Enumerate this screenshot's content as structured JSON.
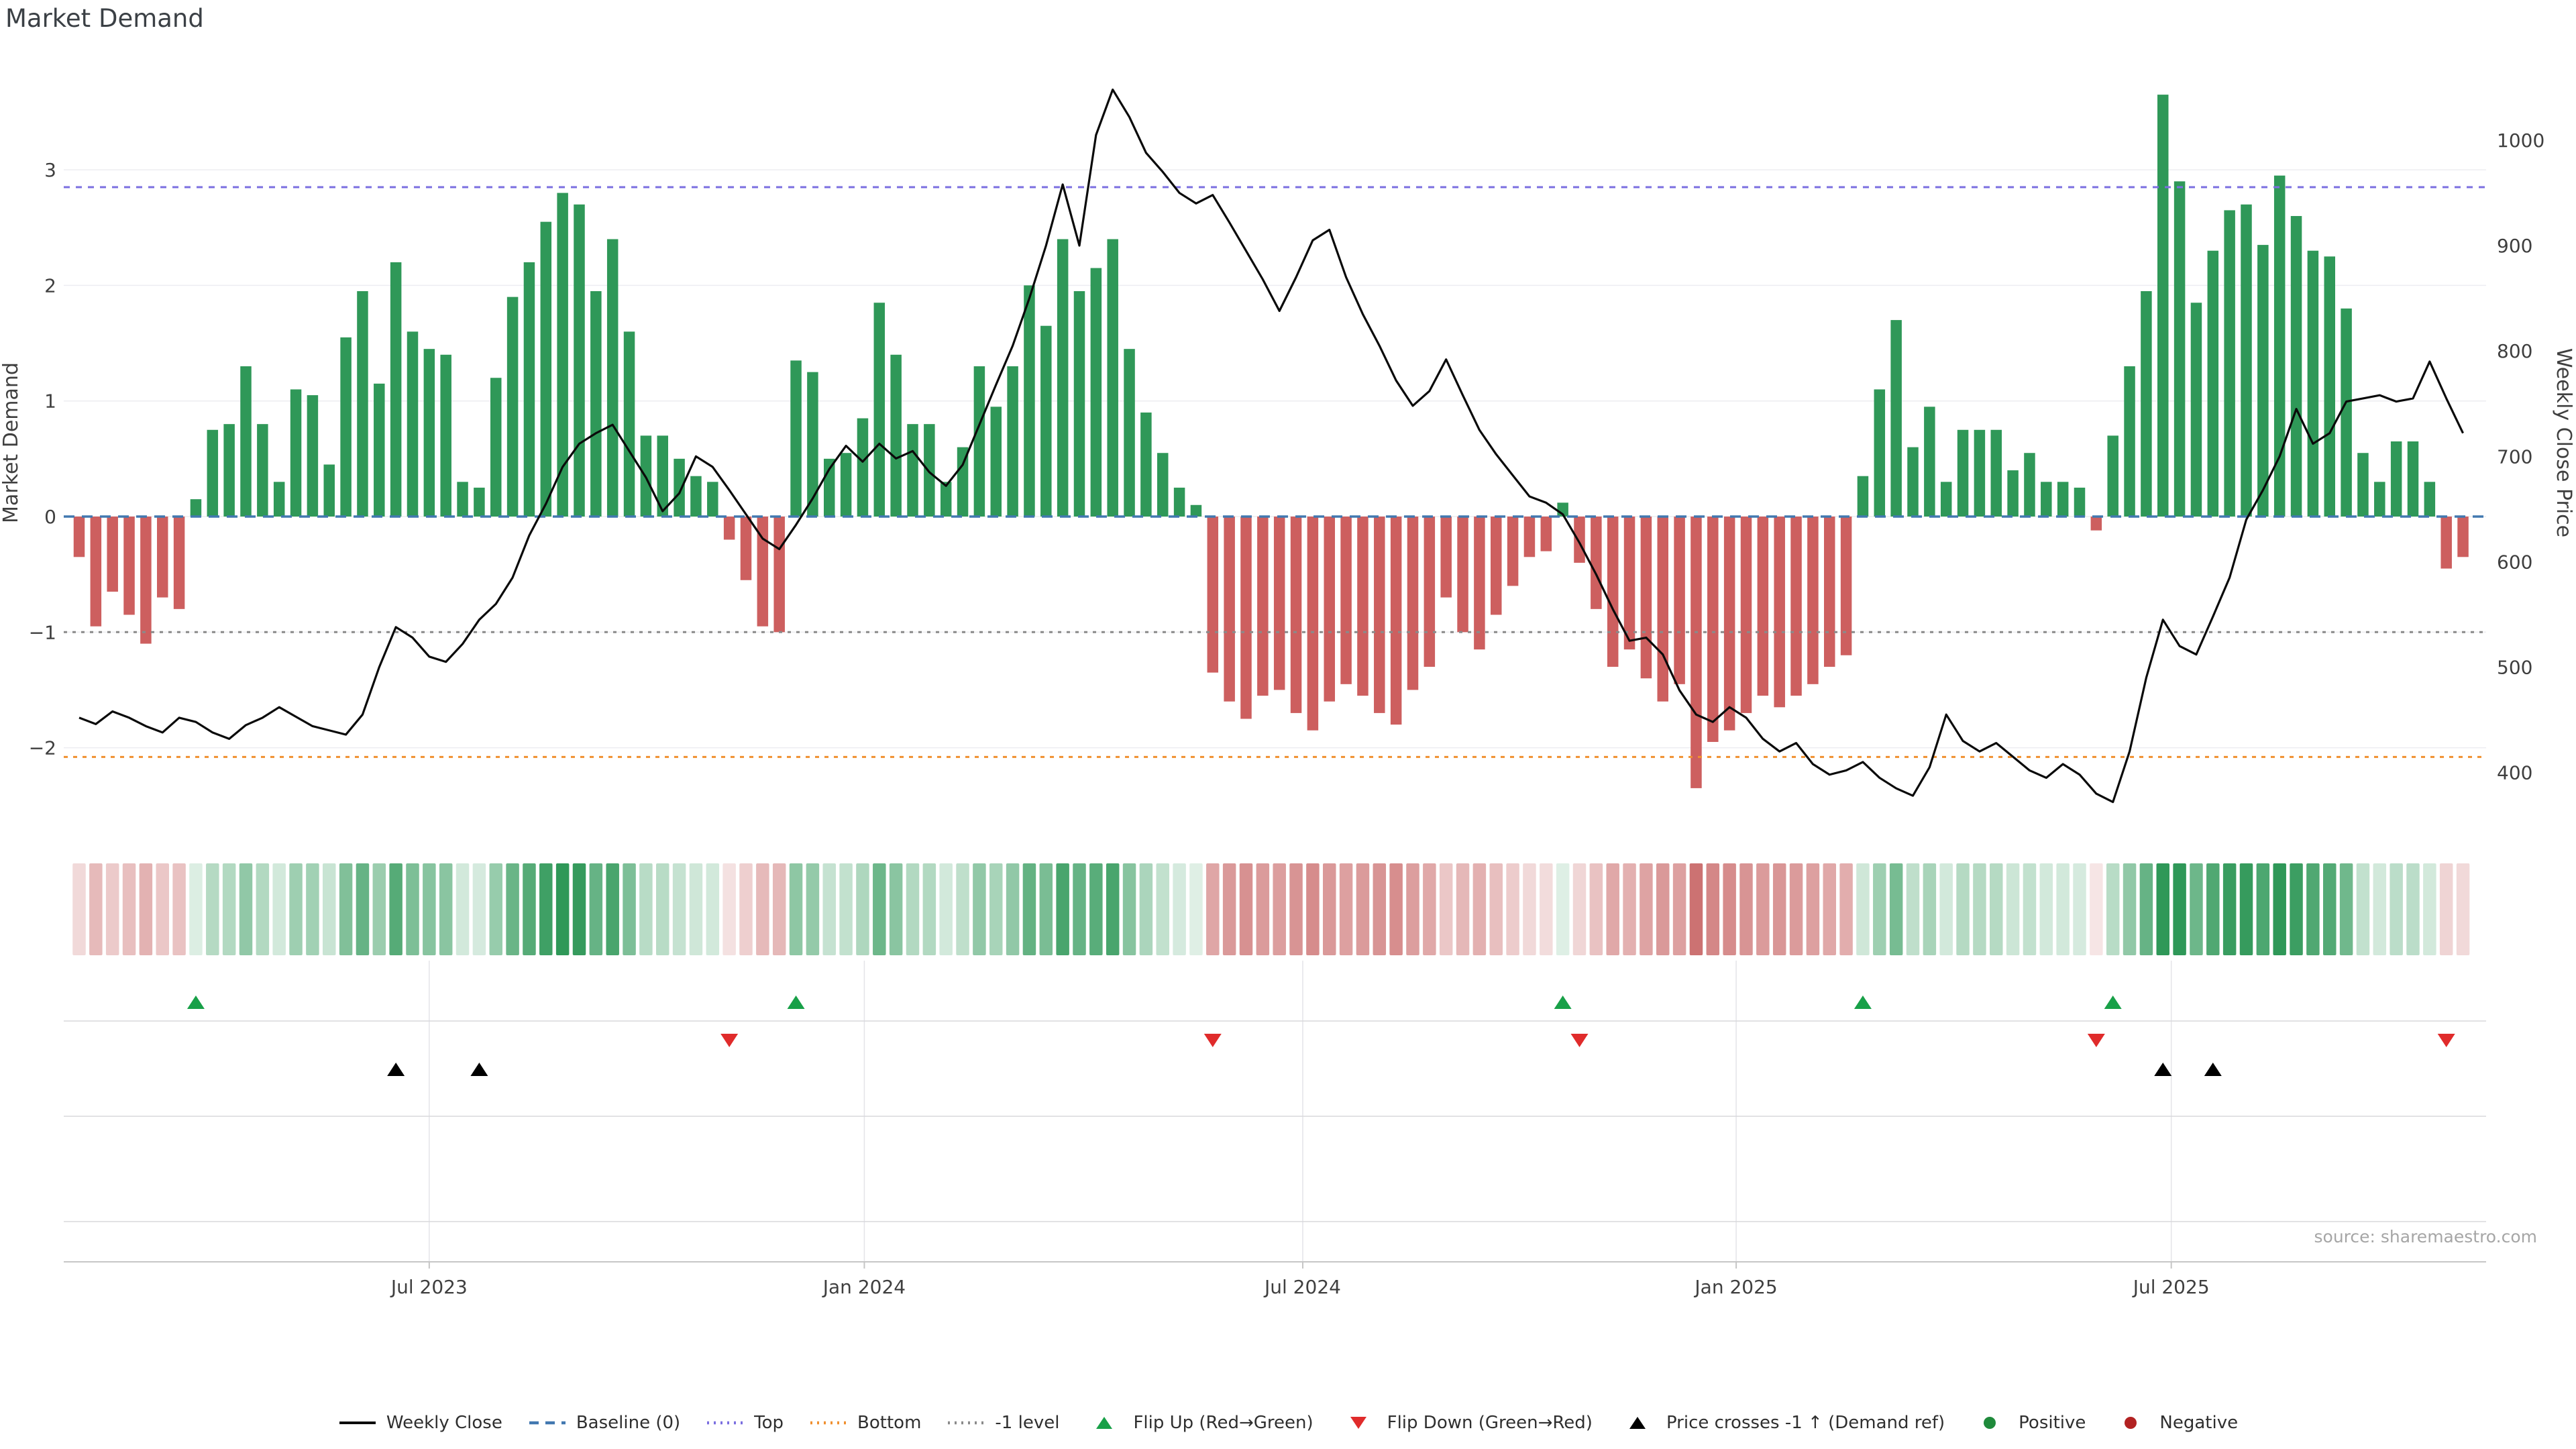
{
  "title": "Market Demand",
  "source": "source: sharemaestro.com",
  "axes": {
    "left": {
      "label": "Market Demand",
      "ticks": [
        3,
        2,
        1,
        0,
        -1,
        -2
      ]
    },
    "right": {
      "label": "Weekly Close Price",
      "ticks": [
        1000,
        900,
        800,
        700,
        600,
        500,
        400
      ]
    },
    "x": {
      "ticks": [
        {
          "label": "Jul 2023",
          "week": 21.0
        },
        {
          "label": "Jan 2024",
          "week": 47.1
        },
        {
          "label": "Jul 2024",
          "week": 73.4
        },
        {
          "label": "Jan 2025",
          "week": 99.4
        },
        {
          "label": "Jul 2025",
          "week": 125.5
        }
      ]
    }
  },
  "legend": {
    "items": [
      {
        "type": "line",
        "color": "#0a0a0a",
        "label": "Weekly Close"
      },
      {
        "type": "dash",
        "color": "#4278B0",
        "label": "Baseline (0)"
      },
      {
        "type": "dots",
        "color": "#7B6FE0",
        "label": "Top"
      },
      {
        "type": "dots",
        "color": "#F09030",
        "label": "Bottom"
      },
      {
        "type": "dots",
        "color": "#8A8A8A",
        "label": "-1 level"
      },
      {
        "type": "tri-up",
        "color": "#18A048",
        "label": "Flip Up (Red→Green)"
      },
      {
        "type": "tri-down",
        "color": "#E02B2B",
        "label": "Flip Down (Green→Red)"
      },
      {
        "type": "tri-up",
        "color": "#000000",
        "label": "Price crosses -1 ↑ (Demand ref)"
      },
      {
        "type": "circle",
        "color": "#1F8A3B",
        "label": "Positive"
      },
      {
        "type": "circle",
        "color": "#B22222",
        "label": "Negative"
      }
    ]
  },
  "colors": {
    "bar_positive": "#2F9858",
    "bar_negative": "#CD5F5F",
    "heat_positive": "#2F9858",
    "heat_negative": "#C45B5B",
    "price_line": "#0a0a0a",
    "baseline": "#4278B0",
    "top_line": "#7B6FE0",
    "bottom_line": "#F09030",
    "minus_one_line": "#8A8A8A",
    "flip_up": "#18A048",
    "flip_down": "#E02B2B",
    "price_cross": "#000000",
    "grid": "#EDEDF1",
    "separator": "#D8D8DC",
    "axis_line": "#C6C6C6",
    "tick_vline": "#E4E4E8",
    "axis_text": "#3F3F3F",
    "title_text": "#3B4045",
    "source_text": "#A6A6A6"
  },
  "chart_data": {
    "type": "combo",
    "title": "Market Demand",
    "x_unit": "week (144 weekly observations, ~Feb 2023 → Nov 2025)",
    "y_left": {
      "label": "Market Demand",
      "ticks": [
        3,
        2,
        1,
        0,
        -1,
        -2
      ],
      "range": [
        -2.6,
        4.0
      ]
    },
    "y_right": {
      "label": "Weekly Close Price",
      "ticks": [
        1000,
        900,
        800,
        700,
        600,
        500,
        400
      ],
      "range": [
        349,
        1082
      ]
    },
    "ref_lines": {
      "baseline": 0,
      "top": 2.85,
      "bottom": -2.08,
      "minus_one_demand": -1,
      "minus_one_price": 533.3
    },
    "grid": "horizontal only (demand integer levels); vertical date gridlines in marker rows",
    "legend_position": "bottom center",
    "series": [
      {
        "name": "Market Demand",
        "type": "bar",
        "axis": "left",
        "values": [
          -0.35,
          -0.95,
          -0.65,
          -0.85,
          -1.1,
          -0.7,
          -0.8,
          0.15,
          0.75,
          0.8,
          1.3,
          0.8,
          0.3,
          1.1,
          1.05,
          0.45,
          1.55,
          1.95,
          1.15,
          2.2,
          1.6,
          1.45,
          1.4,
          0.3,
          0.25,
          1.2,
          1.9,
          2.2,
          2.55,
          2.8,
          2.7,
          1.95,
          2.4,
          1.6,
          0.7,
          0.7,
          0.5,
          0.35,
          0.3,
          -0.2,
          -0.55,
          -0.95,
          -1.0,
          1.35,
          1.25,
          0.5,
          0.55,
          0.85,
          1.85,
          1.4,
          0.8,
          0.8,
          0.3,
          0.6,
          1.3,
          0.95,
          1.3,
          2.0,
          1.65,
          2.4,
          1.95,
          2.15,
          2.4,
          1.45,
          0.9,
          0.55,
          0.25,
          0.1,
          -1.35,
          -1.6,
          -1.75,
          -1.55,
          -1.5,
          -1.7,
          -1.85,
          -1.6,
          -1.45,
          -1.55,
          -1.7,
          -1.8,
          -1.5,
          -1.3,
          -0.7,
          -1.0,
          -1.15,
          -0.85,
          -0.6,
          -0.35,
          -0.3,
          0.12,
          -0.4,
          -0.8,
          -1.3,
          -1.15,
          -1.4,
          -1.6,
          -1.45,
          -2.35,
          -1.95,
          -1.85,
          -1.7,
          -1.55,
          -1.65,
          -1.55,
          -1.45,
          -1.3,
          -1.2,
          0.35,
          1.1,
          1.7,
          0.6,
          0.95,
          0.3,
          0.75,
          0.75,
          0.75,
          0.4,
          0.55,
          0.3,
          0.3,
          0.25,
          -0.12,
          0.7,
          1.3,
          1.95,
          3.65,
          2.9,
          1.85,
          2.3,
          2.65,
          2.7,
          2.35,
          2.95,
          2.6,
          2.3,
          2.25,
          1.8,
          0.55,
          0.3,
          0.65,
          0.65,
          0.3,
          -0.45,
          -0.35
        ]
      },
      {
        "name": "Weekly Close",
        "type": "line",
        "axis": "right",
        "values": [
          452,
          446,
          458,
          452,
          444,
          438,
          452,
          448,
          438,
          432,
          445,
          452,
          462,
          453,
          444,
          440,
          436,
          455,
          500,
          538,
          528,
          510,
          505,
          522,
          545,
          560,
          585,
          625,
          655,
          690,
          712,
          722,
          730,
          705,
          680,
          648,
          665,
          700,
          690,
          668,
          645,
          622,
          612,
          635,
          660,
          688,
          710,
          695,
          712,
          698,
          705,
          685,
          672,
          692,
          730,
          768,
          805,
          850,
          900,
          958,
          900,
          1005,
          1048,
          1022,
          988,
          970,
          950,
          940,
          948,
          922,
          895,
          868,
          838,
          870,
          905,
          915,
          870,
          835,
          805,
          772,
          748,
          762,
          792,
          758,
          725,
          702,
          682,
          662,
          656,
          645,
          618,
          588,
          555,
          525,
          528,
          512,
          478,
          455,
          448,
          462,
          452,
          432,
          420,
          428,
          408,
          398,
          402,
          410,
          395,
          385,
          378,
          405,
          455,
          430,
          420,
          428,
          415,
          402,
          395,
          408,
          398,
          380,
          372,
          420,
          490,
          545,
          520,
          512,
          548,
          585,
          640,
          668,
          700,
          745,
          712,
          722,
          752,
          755,
          758,
          752,
          755,
          790,
          755,
          722
        ]
      }
    ],
    "heatmap": {
      "encodes": "weekly Market Demand value; green = positive, red = negative, color intensity scales with magnitude"
    },
    "markers": {
      "flip_up_weeks": [
        7,
        43,
        89,
        107,
        122
      ],
      "flip_down_weeks": [
        39,
        68,
        90,
        121,
        142
      ],
      "price_cross_minus1_up_weeks": [
        19,
        24,
        125,
        128
      ]
    }
  }
}
